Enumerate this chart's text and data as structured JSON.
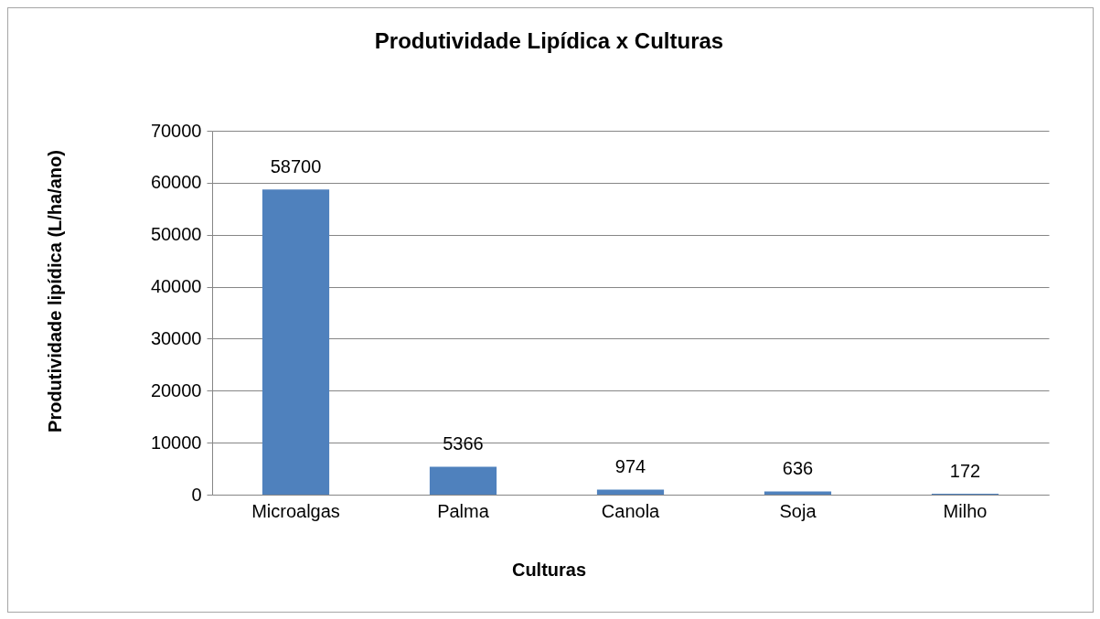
{
  "chart_data": {
    "type": "bar",
    "title": "Produtividade Lipídica x Culturas",
    "xlabel": "Culturas",
    "ylabel": "Produtividade lipídica (L/ha/ano)",
    "categories": [
      "Microalgas",
      "Palma",
      "Canola",
      "Soja",
      "Milho"
    ],
    "values": [
      58700,
      5366,
      974,
      636,
      172
    ],
    "color": "#4f81bd",
    "ylim": [
      0,
      70000
    ],
    "yticks": [
      0,
      10000,
      20000,
      30000,
      40000,
      50000,
      60000,
      70000
    ],
    "grid": "y",
    "data_labels": true
  }
}
